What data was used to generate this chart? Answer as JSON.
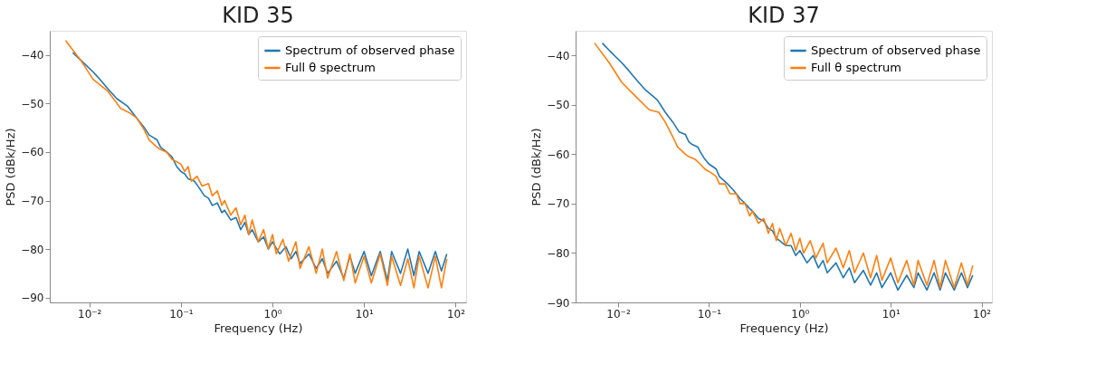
{
  "chart_data": [
    {
      "type": "line",
      "title": "KID 35",
      "xlabel": "Frequency (Hz)",
      "ylabel": "PSD (dBk/Hz)",
      "log": "x",
      "grid": false,
      "legend": "top right",
      "xlim": [
        0.0037,
        130
      ],
      "xticks": [
        {
          "value": 0.01,
          "label": "10⁻²"
        },
        {
          "value": 0.1,
          "label": "10⁻¹"
        },
        {
          "value": 1,
          "label": "10⁰"
        },
        {
          "value": 10,
          "label": "10¹"
        },
        {
          "value": 100,
          "label": "10²"
        }
      ],
      "ylim": [
        -91,
        -35
      ],
      "yticks": [
        -90,
        -80,
        -70,
        -60,
        -50,
        -40
      ],
      "series": [
        {
          "name": "Spectrum of observed phase",
          "color": "#1f77b4",
          "x": [
            0.0066,
            0.008,
            0.011,
            0.013,
            0.016,
            0.02,
            0.026,
            0.033,
            0.04,
            0.045,
            0.05,
            0.055,
            0.06,
            0.07,
            0.08,
            0.09,
            0.1,
            0.11,
            0.12,
            0.14,
            0.16,
            0.18,
            0.2,
            0.22,
            0.25,
            0.28,
            0.3,
            0.35,
            0.4,
            0.45,
            0.5,
            0.55,
            0.6,
            0.7,
            0.8,
            0.9,
            1.0,
            1.2,
            1.4,
            1.6,
            1.8,
            2,
            2.5,
            3,
            3.5,
            4,
            5,
            6,
            7,
            8,
            10,
            12,
            15,
            18,
            20,
            25,
            30,
            35,
            40,
            50,
            60,
            70,
            80
          ],
          "values": [
            -39.5,
            -41,
            -43.5,
            -45,
            -47,
            -49,
            -50.5,
            -53,
            -55,
            -56.5,
            -57,
            -57.5,
            -59,
            -60,
            -61,
            -63,
            -64,
            -64.5,
            -65.5,
            -66,
            -67.5,
            -69,
            -69.5,
            -71,
            -70.5,
            -72.5,
            -72,
            -74,
            -73.5,
            -76,
            -74.5,
            -77,
            -76,
            -78.5,
            -77.5,
            -80,
            -78.5,
            -81,
            -79.5,
            -82,
            -80.5,
            -83,
            -81,
            -84,
            -82,
            -85,
            -82.5,
            -86,
            -81.5,
            -85,
            -80.5,
            -85.5,
            -80.5,
            -86.5,
            -80.5,
            -85,
            -80,
            -85.5,
            -80.5,
            -85,
            -80.5,
            -84.5,
            -81
          ]
        },
        {
          "name": "Full θ spectrum",
          "color": "#ff7f0e",
          "x": [
            0.0055,
            0.008,
            0.011,
            0.016,
            0.022,
            0.028,
            0.033,
            0.04,
            0.045,
            0.055,
            0.06,
            0.07,
            0.08,
            0.09,
            0.1,
            0.11,
            0.12,
            0.13,
            0.15,
            0.17,
            0.2,
            0.22,
            0.25,
            0.28,
            0.3,
            0.35,
            0.4,
            0.45,
            0.5,
            0.55,
            0.6,
            0.7,
            0.8,
            0.9,
            1.0,
            1.1,
            1.3,
            1.5,
            1.8,
            2,
            2.5,
            3,
            3.5,
            4,
            5,
            6,
            7,
            8,
            10,
            12,
            15,
            18,
            20,
            25,
            30,
            35,
            40,
            50,
            60,
            70,
            80
          ],
          "values": [
            -37,
            -41,
            -45,
            -47.5,
            -51,
            -52,
            -53,
            -55.5,
            -57.5,
            -59,
            -59.5,
            -60,
            -61.5,
            -62,
            -62.5,
            -64,
            -63,
            -66,
            -65,
            -67,
            -66.5,
            -69,
            -68,
            -71,
            -70,
            -73,
            -71.5,
            -75,
            -73,
            -77,
            -74,
            -78.5,
            -76,
            -80,
            -77,
            -81,
            -78,
            -82.5,
            -78.5,
            -84,
            -79.5,
            -85,
            -80,
            -86,
            -80.5,
            -86.5,
            -81,
            -87,
            -81.5,
            -87,
            -81,
            -87.5,
            -81.5,
            -87.5,
            -82,
            -88,
            -81.5,
            -88,
            -81.5,
            -88,
            -82
          ]
        }
      ]
    },
    {
      "type": "line",
      "title": "KID 37",
      "xlabel": "Frequency (Hz)",
      "ylabel": "PSD (dBk/Hz)",
      "log": "x",
      "grid": false,
      "legend": "top right",
      "xlim": [
        0.0034,
        130
      ],
      "xticks": [
        {
          "value": 0.01,
          "label": "10⁻²"
        },
        {
          "value": 0.1,
          "label": "10⁻¹"
        },
        {
          "value": 1,
          "label": "10⁰"
        },
        {
          "value": 10,
          "label": "10¹"
        },
        {
          "value": 100,
          "label": "10²"
        }
      ],
      "ylim": [
        -90,
        -35
      ],
      "yticks": [
        -90,
        -80,
        -70,
        -60,
        -50,
        -40
      ],
      "series": [
        {
          "name": "Spectrum of observed phase",
          "color": "#1f77b4",
          "x": [
            0.0067,
            0.008,
            0.011,
            0.013,
            0.016,
            0.02,
            0.027,
            0.033,
            0.04,
            0.047,
            0.055,
            0.06,
            0.065,
            0.075,
            0.08,
            0.09,
            0.1,
            0.11,
            0.12,
            0.13,
            0.16,
            0.18,
            0.2,
            0.22,
            0.25,
            0.28,
            0.3,
            0.35,
            0.4,
            0.45,
            0.5,
            0.55,
            0.6,
            0.7,
            0.8,
            0.9,
            1.0,
            1.2,
            1.4,
            1.6,
            1.8,
            2,
            2.5,
            3,
            3.5,
            4,
            5,
            6,
            7,
            8,
            10,
            12,
            15,
            18,
            20,
            25,
            30,
            35,
            40,
            50,
            60,
            70,
            80
          ],
          "values": [
            -37.5,
            -39,
            -41.5,
            -43,
            -45,
            -47,
            -49,
            -51.5,
            -53.5,
            -55.5,
            -56,
            -57.5,
            -58,
            -58.5,
            -59.5,
            -61,
            -62,
            -62.5,
            -63,
            -64.5,
            -66,
            -67,
            -68,
            -69,
            -70,
            -71,
            -71.5,
            -73,
            -73.5,
            -75,
            -75.5,
            -77,
            -77.5,
            -78.5,
            -78.5,
            -80.5,
            -79.5,
            -82,
            -80.5,
            -83,
            -81.5,
            -84,
            -82,
            -85,
            -83,
            -86,
            -83.5,
            -86.5,
            -84,
            -87,
            -84,
            -87.5,
            -84.5,
            -87,
            -84,
            -87.5,
            -84,
            -87.5,
            -84,
            -87.5,
            -84,
            -87,
            -84.5
          ]
        },
        {
          "name": "Full θ spectrum",
          "color": "#ff7f0e",
          "x": [
            0.0055,
            0.008,
            0.011,
            0.016,
            0.022,
            0.028,
            0.033,
            0.04,
            0.045,
            0.055,
            0.06,
            0.07,
            0.08,
            0.09,
            0.1,
            0.11,
            0.12,
            0.13,
            0.15,
            0.17,
            0.2,
            0.22,
            0.25,
            0.28,
            0.3,
            0.35,
            0.4,
            0.45,
            0.5,
            0.55,
            0.6,
            0.7,
            0.8,
            0.9,
            1.0,
            1.1,
            1.3,
            1.5,
            1.8,
            2,
            2.5,
            3,
            3.5,
            4,
            5,
            6,
            7,
            8,
            10,
            12,
            15,
            18,
            20,
            25,
            30,
            35,
            40,
            50,
            60,
            70,
            80
          ],
          "values": [
            -37.5,
            -41.5,
            -45.5,
            -48.5,
            -51,
            -51.5,
            -53.5,
            -56.5,
            -58.5,
            -60,
            -60.5,
            -61,
            -62,
            -63,
            -63.5,
            -64,
            -64.5,
            -66,
            -66,
            -68,
            -68,
            -70,
            -70,
            -72.5,
            -71.5,
            -74,
            -73,
            -76,
            -74,
            -77.5,
            -75,
            -78.5,
            -76,
            -79.5,
            -77,
            -80,
            -77.5,
            -81,
            -78,
            -82,
            -79,
            -83,
            -79.5,
            -84,
            -80,
            -85,
            -80.5,
            -85.5,
            -81,
            -86,
            -81.5,
            -86.5,
            -81.5,
            -86.5,
            -81.5,
            -87,
            -81.5,
            -87,
            -82,
            -86.5,
            -82.5
          ]
        }
      ]
    }
  ]
}
